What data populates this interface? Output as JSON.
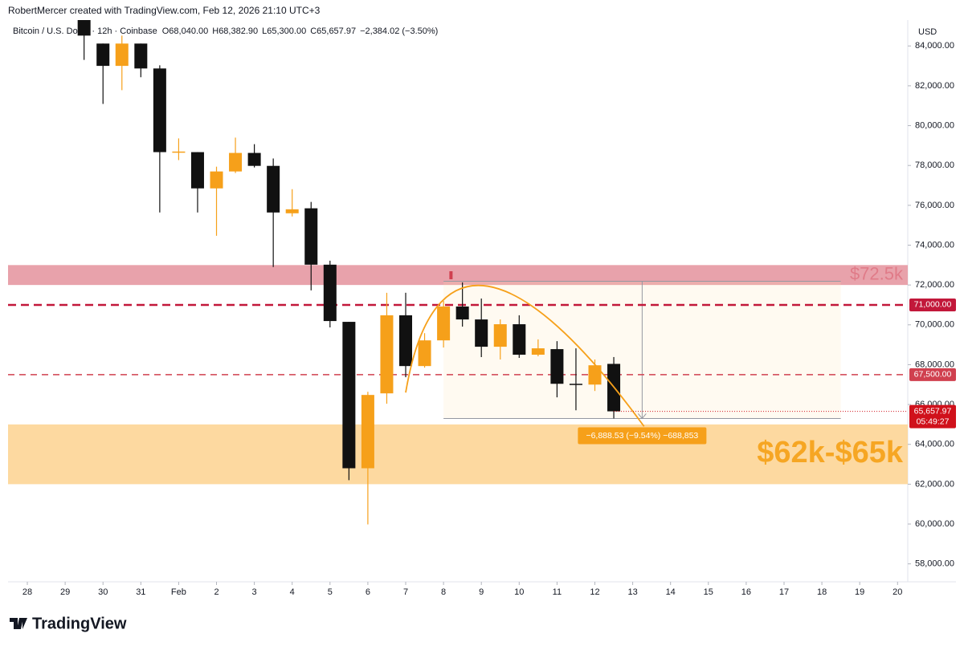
{
  "chart_data": {
    "type": "candlestick",
    "watermark": "RobertMercer created with TradingView.com, Feb 12, 2026 21:10 UTC+3",
    "title": "Bitcoin / U.S. Dollar · 12h · Coinbase",
    "header_values": [
      "O68,040.00",
      "H68,382.90",
      "L65,300.00",
      "C65,657.97",
      "−2,384.02 (−3.50%)"
    ],
    "currency": "USD",
    "brand": "TradingView",
    "up_color": "#f6a01a",
    "down_color": "#111111",
    "x": [
      1.5,
      2,
      2.5,
      3,
      3.5,
      4,
      4.5,
      5,
      5.5,
      6,
      6.5,
      7,
      7.5,
      8,
      8.5,
      9,
      9.5,
      10,
      10.5,
      11,
      11.5,
      12,
      12.5,
      13,
      13.5,
      14,
      14.5,
      15,
      15.5
    ],
    "open": [
      85300,
      84120,
      83000,
      84120,
      82870,
      78650,
      78670,
      76850,
      77700,
      78630,
      77980,
      75600,
      75850,
      73020,
      70150,
      62800,
      66560,
      70480,
      67930,
      69220,
      70920,
      70270,
      68900,
      70030,
      68500,
      68780,
      67040,
      67000,
      68040
    ],
    "high": [
      85500,
      84120,
      84520,
      84120,
      83030,
      79360,
      78670,
      77940,
      79400,
      79070,
      78350,
      76810,
      76170,
      73220,
      70150,
      66640,
      71610,
      71610,
      69580,
      71200,
      72130,
      71320,
      70270,
      70480,
      69270,
      69180,
      68820,
      68260,
      68382.9
    ],
    "low": [
      83300,
      81090,
      81780,
      82430,
      75640,
      78270,
      75640,
      74470,
      77620,
      77900,
      72900,
      75440,
      71730,
      69870,
      62200,
      59980,
      66040,
      67370,
      67850,
      68860,
      69910,
      68380,
      68260,
      68340,
      68420,
      66360,
      65710,
      66680,
      65300
    ],
    "close": [
      84520,
      83000,
      84120,
      82870,
      78670,
      78700,
      76850,
      77700,
      78630,
      77980,
      75640,
      75800,
      73020,
      70190,
      62800,
      66480,
      70480,
      67930,
      69220,
      70920,
      70270,
      68900,
      70030,
      68500,
      68820,
      67040,
      67000,
      67970,
      65657.97
    ],
    "xlim": [
      -0.51,
      23.27
    ],
    "xticks": [
      {
        "value": 0,
        "label": "28"
      },
      {
        "value": 1,
        "label": "29"
      },
      {
        "value": 2,
        "label": "30"
      },
      {
        "value": 3,
        "label": "31"
      },
      {
        "value": 4,
        "label": "Feb"
      },
      {
        "value": 5,
        "label": "2"
      },
      {
        "value": 6,
        "label": "3"
      },
      {
        "value": 7,
        "label": "4"
      },
      {
        "value": 8,
        "label": "5"
      },
      {
        "value": 9,
        "label": "6"
      },
      {
        "value": 10,
        "label": "7"
      },
      {
        "value": 11,
        "label": "8"
      },
      {
        "value": 12,
        "label": "9"
      },
      {
        "value": 13,
        "label": "10"
      },
      {
        "value": 14,
        "label": "11"
      },
      {
        "value": 15,
        "label": "12"
      },
      {
        "value": 16,
        "label": "13"
      },
      {
        "value": 17,
        "label": "14"
      },
      {
        "value": 18,
        "label": "15"
      },
      {
        "value": 19,
        "label": "16"
      },
      {
        "value": 20,
        "label": "17"
      },
      {
        "value": 21,
        "label": "18"
      },
      {
        "value": 22,
        "label": "19"
      },
      {
        "value": 23,
        "label": "20"
      }
    ],
    "ylim": [
      57100,
      85300
    ],
    "yticks": [
      {
        "value": 58000,
        "label": "58,000.00"
      },
      {
        "value": 60000,
        "label": "60,000.00"
      },
      {
        "value": 62000,
        "label": "62,000.00"
      },
      {
        "value": 64000,
        "label": "64,000.00"
      },
      {
        "value": 66000,
        "label": "66,000.00"
      },
      {
        "value": 68000,
        "label": "68,000.00"
      },
      {
        "value": 70000,
        "label": "70,000.00"
      },
      {
        "value": 72000,
        "label": "72,000.00"
      },
      {
        "value": 74000,
        "label": "74,000.00"
      },
      {
        "value": 76000,
        "label": "76,000.00"
      },
      {
        "value": 78000,
        "label": "78,000.00"
      },
      {
        "value": 80000,
        "label": "80,000.00"
      },
      {
        "value": 82000,
        "label": "82,000.00"
      },
      {
        "value": 84000,
        "label": "84,000.00"
      }
    ],
    "zones": [
      {
        "from": 72000,
        "to": 73000,
        "color": "#e8a2ab",
        "label": "$72.5k",
        "label_color": "#e07b88"
      },
      {
        "from": 62000,
        "to": 65000,
        "color": "#fdd9a0",
        "label": "$62k-$65k",
        "label_color": "#f6a623"
      }
    ],
    "levels": [
      {
        "value": 71000,
        "label": "71,000.00",
        "color": "#c2183a"
      },
      {
        "value": 67500,
        "label": "67,500.00",
        "color": "#d0404f"
      }
    ],
    "last_price": {
      "value": 65657.97,
      "label": "65,657.97",
      "countdown": "05:49:27",
      "color": "#d0111b"
    },
    "measure": {
      "x": [
        11,
        21.5
      ],
      "from": 72188.53,
      "to": 65300,
      "arrow_x": 16.25,
      "label": "−6,888.53 (−9.54%) −688,853"
    }
  }
}
